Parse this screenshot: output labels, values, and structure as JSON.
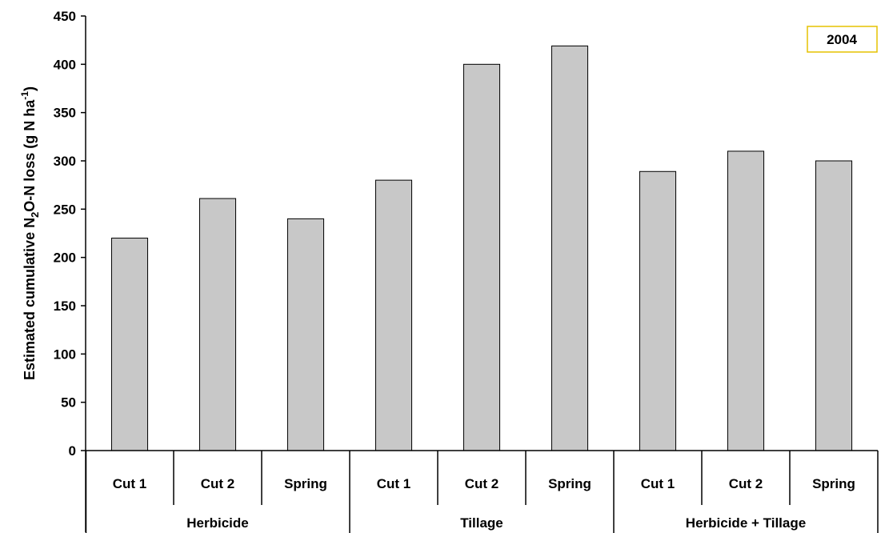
{
  "chart_data": {
    "type": "bar",
    "title": "",
    "ylabel": {
      "prefix": "Estimated cumulative N",
      "sub": "2",
      "middle": "O-N loss (g N ha",
      "sup": "-1",
      "suffix": ")"
    },
    "xlabel": "",
    "ylim": [
      0,
      450
    ],
    "yticks": [
      "0",
      "50",
      "100",
      "150",
      "200",
      "250",
      "300",
      "350",
      "400",
      "450"
    ],
    "groups": [
      {
        "name": "Herbicide",
        "categories": [
          "Cut 1",
          "Cut 2",
          "Spring"
        ],
        "values": [
          220,
          261,
          240
        ]
      },
      {
        "name": "Tillage",
        "categories": [
          "Cut 1",
          "Cut 2",
          "Spring"
        ],
        "values": [
          280,
          400,
          419
        ]
      },
      {
        "name": "Herbicide + Tillage",
        "categories": [
          "Cut 1",
          "Cut 2",
          "Spring"
        ],
        "values": [
          289,
          310,
          300
        ]
      }
    ],
    "legend": {
      "label": "2004",
      "position": "top-right"
    },
    "colors": {
      "bar_fill": "#c8c8c8",
      "bar_stroke": "#000000",
      "legend_border": "#e6c200"
    }
  }
}
